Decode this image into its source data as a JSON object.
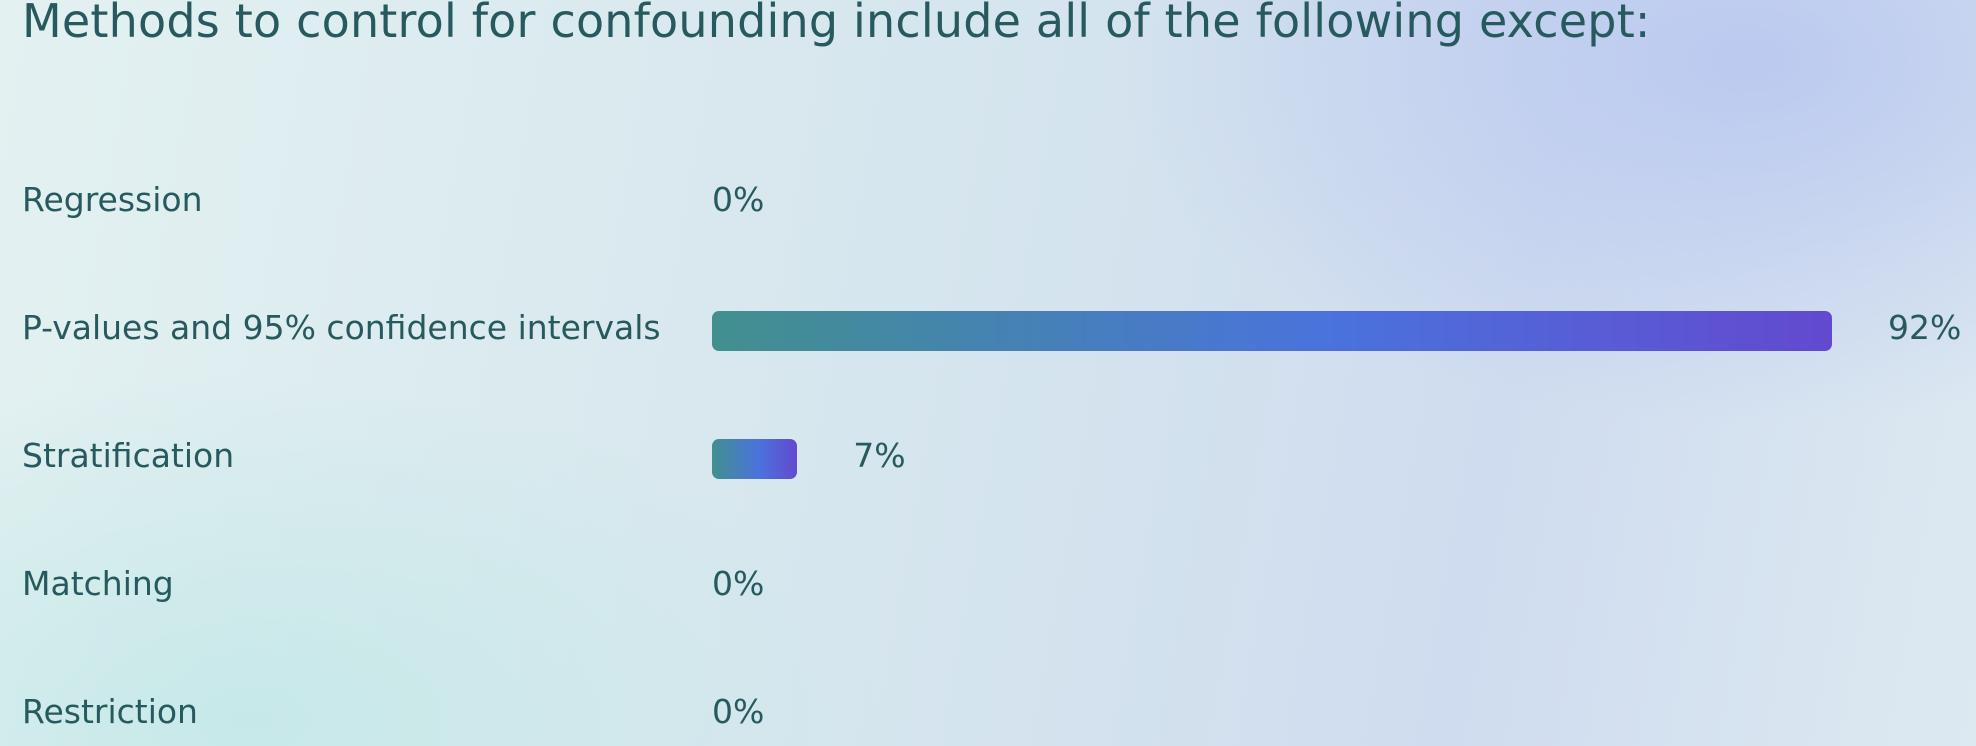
{
  "chart_data": {
    "type": "bar",
    "orientation": "horizontal",
    "title": "Methods to control for confounding include all of the following except:",
    "categories": [
      "Regression",
      "P-values and 95% confidence intervals",
      "Stratification",
      "Matching",
      "Restriction"
    ],
    "values": [
      0,
      92,
      7,
      0,
      0
    ],
    "value_labels": [
      "0%",
      "92%",
      "7%",
      "0%",
      "0%"
    ],
    "xlim": [
      0,
      100
    ],
    "grid": false,
    "legend": "none"
  },
  "colors": {
    "bar_start": "#41908e",
    "bar_mid": "#4a73dc",
    "bar_end": "#6349cf",
    "text": "#275a5e"
  }
}
